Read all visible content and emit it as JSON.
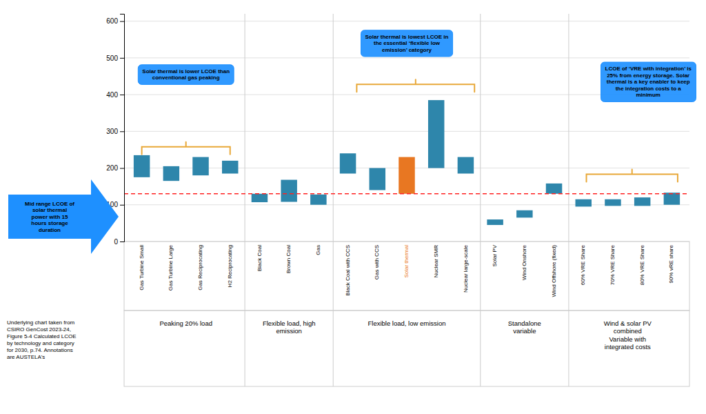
{
  "chart_data": {
    "type": "range_bar",
    "categories": [
      "Gas Turbine Small",
      "Gas Turbine Large",
      "Gas Reciprocating",
      "H2 Reciprocating",
      "Black Coal",
      "Brown Coal",
      "Gas",
      "Black Coal with CCS",
      "Gas with CCS",
      "Solar thermal",
      "Nuclear SMR",
      "Nuclear large-scale",
      "Solar PV",
      "Wind Onshore",
      "Wind Offshore (fixed)",
      "60% VRE Share",
      "70% VRE Share",
      "80% VRE Share",
      "90% vRE share"
    ],
    "low": [
      175,
      165,
      180,
      185,
      107,
      108,
      100,
      185,
      140,
      130,
      200,
      185,
      45,
      65,
      130,
      95,
      97,
      97,
      100
    ],
    "high": [
      235,
      205,
      230,
      220,
      130,
      168,
      128,
      240,
      200,
      230,
      385,
      230,
      60,
      85,
      158,
      115,
      115,
      120,
      133
    ],
    "colors": [
      "#2E86AB",
      "#2E86AB",
      "#2E86AB",
      "#2E86AB",
      "#2E86AB",
      "#2E86AB",
      "#2E86AB",
      "#2E86AB",
      "#2E86AB",
      "#E87722",
      "#2E86AB",
      "#2E86AB",
      "#2E86AB",
      "#2E86AB",
      "#2E86AB",
      "#2E86AB",
      "#2E86AB",
      "#2E86AB",
      "#2E86AB"
    ],
    "ylim": [
      0,
      620
    ],
    "yticks": [
      0,
      100,
      200,
      300,
      400,
      500,
      600
    ],
    "grid": true,
    "reference_line": {
      "value": 130,
      "color": "#FF2222",
      "line_style": "dashed"
    },
    "groups": [
      {
        "label": "Peaking 20% load",
        "size": 4
      },
      {
        "label": "Flexible load, high\nemission",
        "size": 3
      },
      {
        "label": "Flexible load, low emission",
        "size": 5
      },
      {
        "label": "Standalone\nvariable",
        "size": 3
      },
      {
        "label": "Wind & solar PV\ncombined\nVariable with\nintegrated costs",
        "size": 4
      }
    ],
    "brackets": [
      {
        "from": 0.0,
        "to": 3.0,
        "y": 258
      },
      {
        "from": 7.3,
        "to": 11.3,
        "y": 428
      },
      {
        "from": 15.1,
        "to": 18.2,
        "y": 183
      }
    ],
    "bracket_color": "#E8A838",
    "annotations": [
      {
        "text": "Solar thermal is lower LCOE than\nconventional gas peaking",
        "x": 1.5,
        "y": 455
      },
      {
        "text": "Solar thermal is lowest LCOE in\nthe essential ‘flexible low\nemission’ category",
        "x": 9.0,
        "y": 540
      },
      {
        "text": "LCOE of ‘VRE with integration’ is\n25% from energy storage. Solar\nthermal is a key enabler to keep\nthe integration costs to a\nminimum",
        "x": 17.2,
        "y": 435
      }
    ],
    "annotation_color": "#1E90FF",
    "arrow_label": "Mid range LCOE of\nsolar thermal\npower with 15\nhours storage\nduration",
    "footnote": "Underlying chart taken from\nCSIRO GenCost 2023-24,\nFigure 5-4 Calculated LCOE\nby technology and category\nfor 2030, p.74. Annotations\nare AUSTELA's"
  }
}
